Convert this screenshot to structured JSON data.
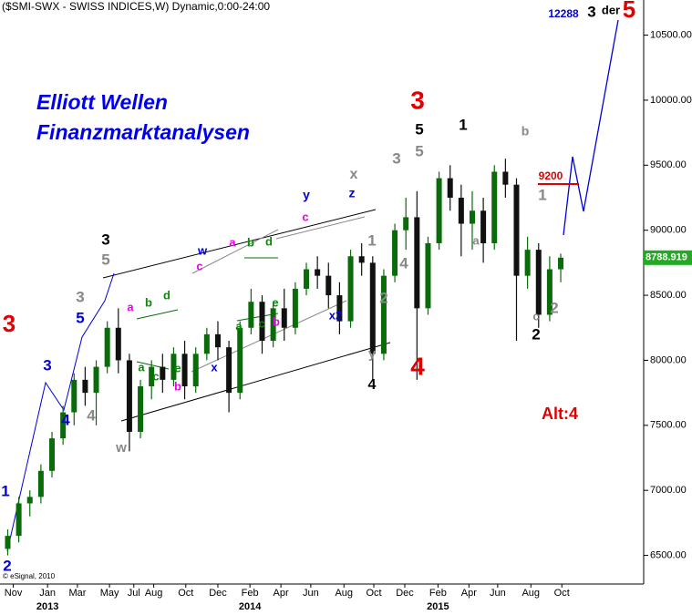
{
  "chart_data": {
    "type": "candlestick",
    "title": "($SMI-SWX - SWISS INDICES,W) Dynamic,0:00-24:00",
    "overlay_title": [
      "Elliott Wellen",
      "Finanzmarktanalysen"
    ],
    "copyright": "© eSignal, 2010",
    "up_color": "#0a6b0a",
    "down_color": "#111111",
    "open": [
      6550,
      6650,
      6900,
      6950,
      7150,
      7400,
      7600,
      7850,
      7750,
      7950,
      8250,
      8000,
      7450,
      7800,
      7950,
      7850,
      8050,
      7800,
      8050,
      8200,
      8100,
      7750,
      8250,
      8450,
      8150,
      8400,
      8250,
      8550,
      8700,
      8650,
      8500,
      8300,
      8800,
      8750,
      8050,
      8650,
      9000,
      9100,
      8400,
      8900,
      9400,
      9250,
      9050,
      9150,
      8900,
      9450,
      9350,
      8650,
      8850,
      8350,
      8700
    ],
    "high": [
      6700,
      6950,
      7000,
      7200,
      7450,
      7650,
      7900,
      7950,
      8000,
      8300,
      8400,
      8050,
      7850,
      8000,
      8050,
      8100,
      8150,
      8100,
      8250,
      8300,
      8150,
      8300,
      8550,
      8500,
      8450,
      8550,
      8600,
      8750,
      8800,
      8750,
      8600,
      8850,
      8900,
      8800,
      8700,
      9050,
      9250,
      9300,
      8950,
      9450,
      9500,
      9350,
      9300,
      9250,
      9500,
      9550,
      9400,
      8950,
      8900,
      8800,
      8820
    ],
    "low": [
      6500,
      6600,
      6800,
      6900,
      7100,
      7350,
      7500,
      7650,
      7500,
      7900,
      7900,
      7300,
      7400,
      7700,
      7750,
      7800,
      7700,
      7750,
      8000,
      8000,
      7600,
      7700,
      8200,
      8050,
      8100,
      8150,
      8200,
      8500,
      8550,
      8400,
      8200,
      8250,
      8650,
      7850,
      8000,
      8600,
      8850,
      7850,
      8350,
      8850,
      9150,
      8800,
      8850,
      8750,
      8850,
      9250,
      8150,
      8550,
      8250,
      8300,
      8600
    ],
    "close": [
      6650,
      6900,
      6950,
      7150,
      7400,
      7600,
      7850,
      7750,
      7950,
      8250,
      8000,
      7450,
      7800,
      7950,
      7850,
      8050,
      7800,
      8050,
      8200,
      8100,
      7750,
      8250,
      8450,
      8150,
      8400,
      8250,
      8550,
      8700,
      8650,
      8500,
      8300,
      8800,
      8750,
      8050,
      8650,
      9000,
      9100,
      8400,
      8900,
      9400,
      9250,
      9050,
      9150,
      8900,
      9450,
      9350,
      8650,
      8850,
      8350,
      8700,
      8788.919
    ],
    "ylim": [
      6280,
      10770
    ],
    "yticks": [
      {
        "value": 6500,
        "label": "6500.00"
      },
      {
        "value": 7000,
        "label": "7000.00"
      },
      {
        "value": 7500,
        "label": "7500.00"
      },
      {
        "value": 8000,
        "label": "8000.00"
      },
      {
        "value": 8500,
        "label": "8500.00"
      },
      {
        "value": 9000,
        "label": "9000.00"
      },
      {
        "value": 9500,
        "label": "9500.00"
      },
      {
        "value": 10000,
        "label": "10000.00"
      },
      {
        "value": 10500,
        "label": "10500.00"
      }
    ],
    "xlim": [
      -0.7,
      57.5
    ],
    "xticks": [
      {
        "value": 0.5,
        "label": "Nov"
      },
      {
        "value": 3.6,
        "label": "Jan"
      },
      {
        "value": 6.3,
        "label": "Mar"
      },
      {
        "value": 9.2,
        "label": "May"
      },
      {
        "value": 11.4,
        "label": "Jul"
      },
      {
        "value": 13.2,
        "label": "Aug"
      },
      {
        "value": 16.1,
        "label": "Oct"
      },
      {
        "value": 19,
        "label": "Dec"
      },
      {
        "value": 21.9,
        "label": "Feb"
      },
      {
        "value": 24.7,
        "label": "Apr"
      },
      {
        "value": 27.4,
        "label": "Jun"
      },
      {
        "value": 30.4,
        "label": "Aug"
      },
      {
        "value": 33.1,
        "label": "Oct"
      },
      {
        "value": 35.9,
        "label": "Dec"
      },
      {
        "value": 38.9,
        "label": "Feb"
      },
      {
        "value": 41.7,
        "label": "Apr"
      },
      {
        "value": 44.3,
        "label": "Jun"
      },
      {
        "value": 47.3,
        "label": "Aug"
      },
      {
        "value": 50.1,
        "label": "Oct"
      }
    ],
    "year_labels": [
      {
        "value": 3.6,
        "label": "2013"
      },
      {
        "value": 21.9,
        "label": "2014"
      },
      {
        "value": 38.9,
        "label": "2015"
      }
    ],
    "annotations": [
      "3",
      "1",
      "2",
      "3",
      "4",
      "5",
      "3",
      "4",
      "3",
      "5",
      "w",
      "a",
      "b",
      "d",
      "a",
      "c",
      "e",
      "b",
      "w",
      "c",
      "a",
      "b",
      "d",
      "x",
      "a",
      "c",
      "e",
      "b",
      "y",
      "c",
      "z",
      "x",
      "x2",
      "1",
      "2",
      "4",
      "y",
      "4",
      "3",
      "3",
      "5",
      "5",
      "4",
      "1",
      "a",
      "b",
      "1",
      "c",
      "2",
      "2",
      "9200",
      "Alt:4",
      "12288",
      "3",
      "der",
      "5"
    ]
  }
}
